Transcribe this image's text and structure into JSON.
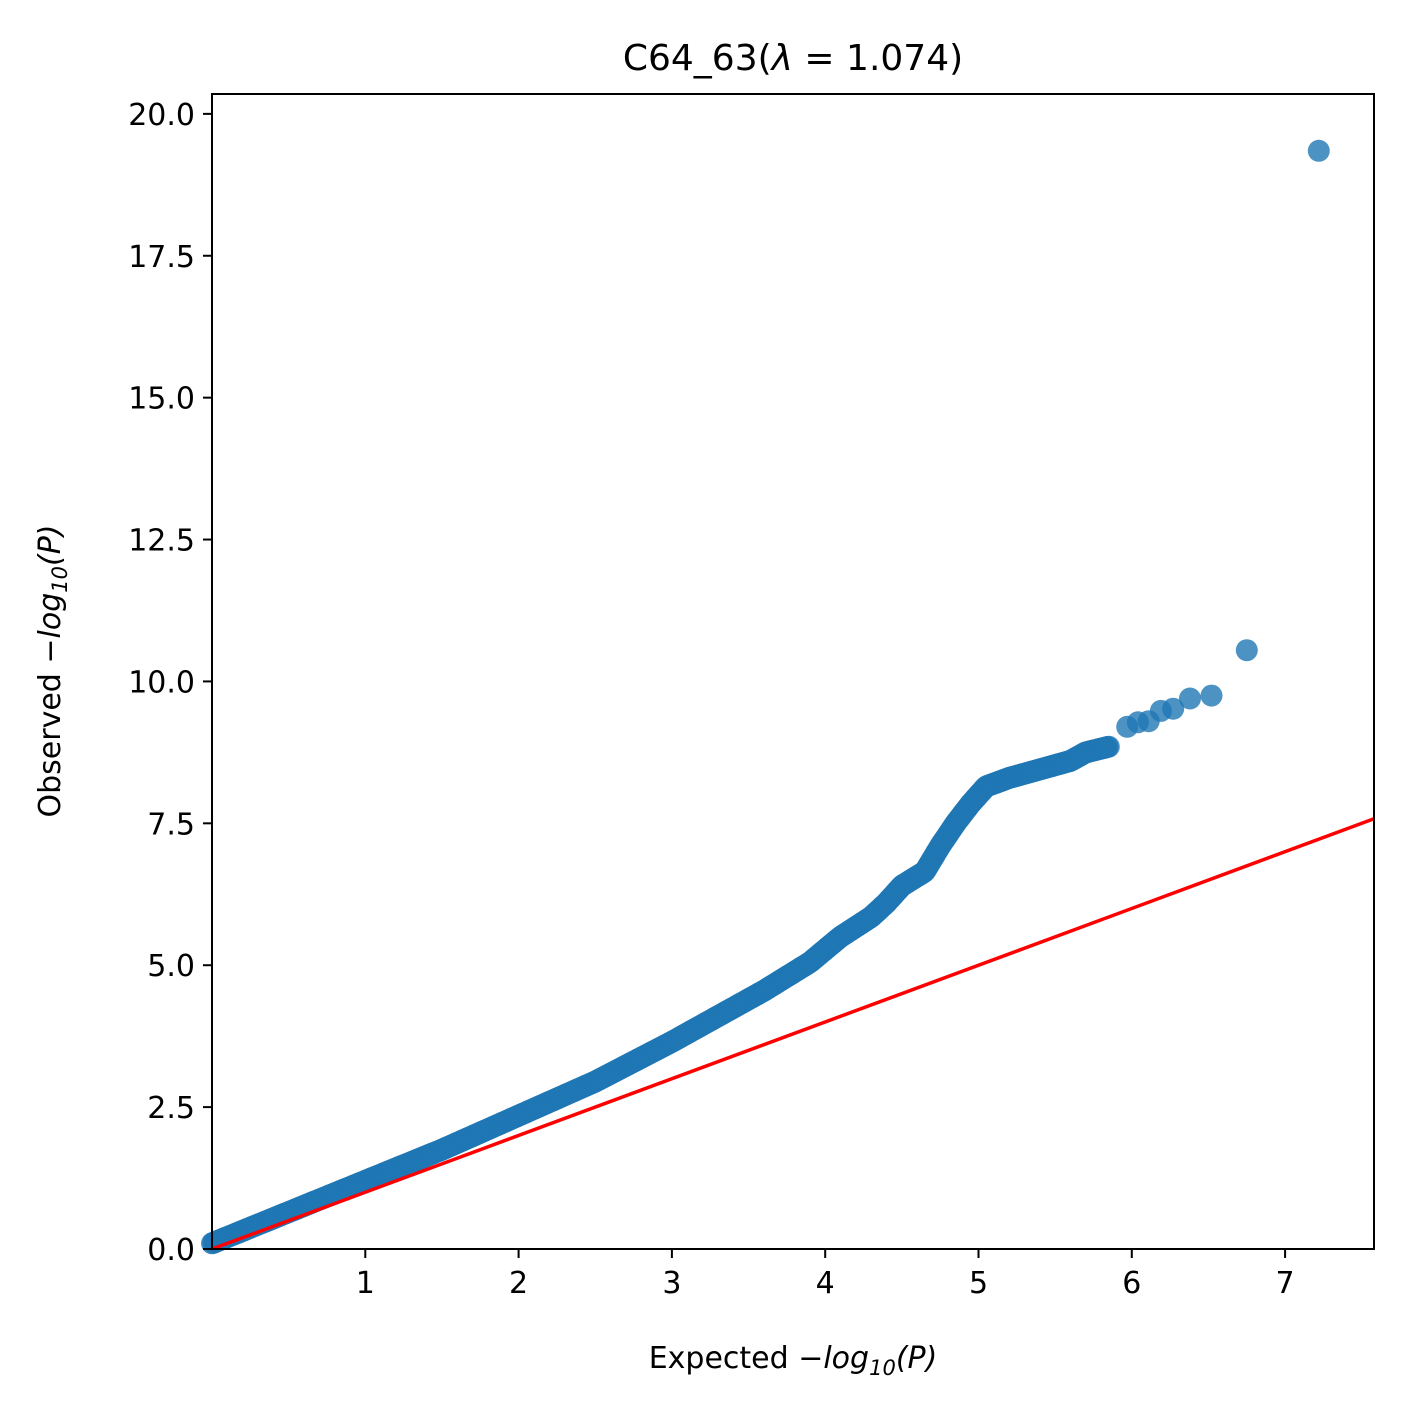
{
  "chart_data": {
    "type": "scatter",
    "title_prefix": "C64_63(",
    "title_lambda": "λ",
    "title_value": " = 1.074)",
    "xlabel_prefix": "Expected ",
    "ylabel_prefix": "Observed ",
    "label_minus": "−",
    "label_log": "log",
    "label_sub": "10",
    "label_p": "(P)",
    "xlim": [
      0,
      7.58
    ],
    "ylim": [
      0,
      20.35
    ],
    "xticks": [
      1,
      2,
      3,
      4,
      5,
      6,
      7
    ],
    "xtick_labels": [
      "1",
      "2",
      "3",
      "4",
      "5",
      "6",
      "7"
    ],
    "yticks": [
      0,
      2.5,
      5,
      7.5,
      10,
      12.5,
      15,
      17.5,
      20
    ],
    "ytick_labels": [
      "0.0",
      "2.5",
      "5.0",
      "7.5",
      "10.0",
      "12.5",
      "15.0",
      "17.5",
      "20.0"
    ],
    "grid": false,
    "point_color": "#1f77b4",
    "line_color": "#ff0000",
    "reference_line": {
      "x": [
        0,
        7.58
      ],
      "y": [
        0,
        7.58
      ]
    },
    "points_trace": {
      "x": [
        0.0,
        0.5,
        1.0,
        1.5,
        2.0,
        2.5,
        3.0,
        3.3,
        3.6,
        3.9,
        4.1,
        4.3,
        4.4,
        4.5,
        4.65,
        4.75,
        4.85,
        4.95,
        5.05,
        5.2,
        5.4,
        5.6,
        5.7,
        5.85
      ],
      "y": [
        0.1,
        0.65,
        1.2,
        1.75,
        2.35,
        2.95,
        3.65,
        4.1,
        4.55,
        5.05,
        5.5,
        5.85,
        6.1,
        6.4,
        6.65,
        7.1,
        7.5,
        7.85,
        8.15,
        8.3,
        8.45,
        8.6,
        8.75,
        8.85
      ]
    },
    "points_tail": {
      "x": [
        5.97,
        6.04,
        6.11,
        6.19,
        6.27,
        6.38,
        6.52,
        6.75,
        7.22
      ],
      "y": [
        9.2,
        9.28,
        9.3,
        9.48,
        9.52,
        9.7,
        9.75,
        10.55,
        19.35
      ]
    }
  }
}
